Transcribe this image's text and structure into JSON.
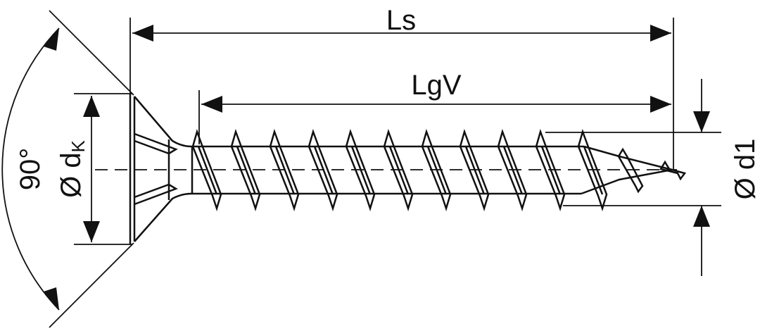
{
  "labels": {
    "ls": "Ls",
    "lgv": "LgV",
    "angle": "90°",
    "head_diameter": "Ø d",
    "head_diameter_sub": "K",
    "thread_diameter": "Ø d1"
  },
  "colors": {
    "line": "#111111",
    "background": "#ffffff"
  }
}
